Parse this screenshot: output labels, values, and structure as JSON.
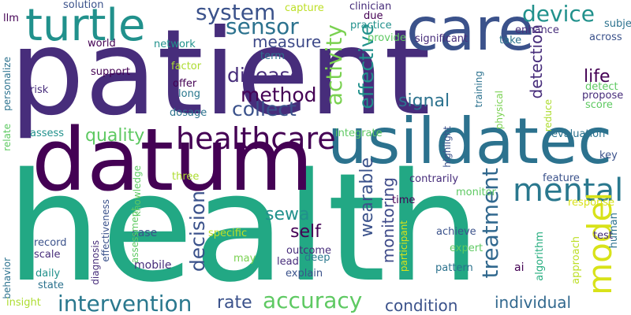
{
  "palette": {
    "dark_purple": "#440154",
    "indigo": "#472d7b",
    "blue": "#3b528b",
    "slate_blue": "#2c728e",
    "teal": "#21918c",
    "green_teal": "#28ae80",
    "green": "#5ec962",
    "lime": "#addc30",
    "yellow": "#d8e219"
  },
  "words": [
    {
      "text": "patient",
      "color": "#472d7b"
    },
    {
      "text": "health",
      "color": "#22a884"
    },
    {
      "text": "datum",
      "color": "#440154"
    },
    {
      "text": "usildatec",
      "color": "#2c728e"
    },
    {
      "text": "care",
      "color": "#3b528b"
    },
    {
      "text": "turtle",
      "color": "#21918c"
    },
    {
      "text": "healthcare",
      "color": "#440154"
    },
    {
      "text": "mental",
      "color": "#2a788e"
    },
    {
      "text": "model",
      "color": "#d8e219"
    },
    {
      "text": "system",
      "color": "#3b528b"
    },
    {
      "text": "sensor",
      "color": "#2c728e"
    },
    {
      "text": "device",
      "color": "#21918c"
    },
    {
      "text": "activity",
      "color": "#7ad151"
    },
    {
      "text": "disease",
      "color": "#472d7b"
    },
    {
      "text": "method",
      "color": "#440154"
    },
    {
      "text": "collect",
      "color": "#3b528b"
    },
    {
      "text": "measure",
      "color": "#3e4a89"
    },
    {
      "text": "effective",
      "color": "#21918c"
    },
    {
      "text": "signal",
      "color": "#2c728e"
    },
    {
      "text": "life",
      "color": "#440154"
    },
    {
      "text": "quality",
      "color": "#5ec962"
    },
    {
      "text": "accuracy",
      "color": "#5ec962"
    },
    {
      "text": "intervention",
      "color": "#2a788e"
    },
    {
      "text": "treatment",
      "color": "#31688e"
    },
    {
      "text": "decision",
      "color": "#3b528b"
    },
    {
      "text": "wearable",
      "color": "#3b528b"
    },
    {
      "text": "monitoring",
      "color": "#3e4a89"
    },
    {
      "text": "detection",
      "color": "#472d7b"
    },
    {
      "text": "sewa",
      "color": "#21918c"
    },
    {
      "text": "self",
      "color": "#440154"
    },
    {
      "text": "rate",
      "color": "#3b528b"
    },
    {
      "text": "condition",
      "color": "#3b528b"
    },
    {
      "text": "individual",
      "color": "#31688e"
    },
    {
      "text": "case",
      "color": "#3b528b"
    },
    {
      "text": "mobile",
      "color": "#472d7b"
    },
    {
      "text": "outcome",
      "color": "#472d7b"
    },
    {
      "text": "lead",
      "color": "#472d7b"
    },
    {
      "text": "deep",
      "color": "#2a788e"
    },
    {
      "text": "explain",
      "color": "#3b528b"
    },
    {
      "text": "may",
      "color": "#7ad151"
    },
    {
      "text": "specific",
      "color": "#bddf26"
    },
    {
      "text": "pattern",
      "color": "#2c728e"
    },
    {
      "text": "achieve",
      "color": "#3b528b"
    },
    {
      "text": "expert",
      "color": "#5ec962"
    },
    {
      "text": "ai",
      "color": "#440154"
    },
    {
      "text": "algorithm",
      "color": "#28ae80"
    },
    {
      "text": "approach",
      "color": "#bddf26"
    },
    {
      "text": "test",
      "color": "#472d7b"
    },
    {
      "text": "human",
      "color": "#2c728e"
    },
    {
      "text": "response",
      "color": "#d8e219"
    },
    {
      "text": "feature",
      "color": "#3b528b"
    },
    {
      "text": "key",
      "color": "#3b528b"
    },
    {
      "text": "evaluation",
      "color": "#2c728e"
    },
    {
      "text": "score",
      "color": "#5ec962"
    },
    {
      "text": "detect",
      "color": "#5ec962"
    },
    {
      "text": "propose",
      "color": "#472d7b"
    },
    {
      "text": "reduce",
      "color": "#addc30"
    },
    {
      "text": "across",
      "color": "#3b528b"
    },
    {
      "text": "subject",
      "color": "#2c728e"
    },
    {
      "text": "enhance",
      "color": "#472d7b"
    },
    {
      "text": "take",
      "color": "#2c728e"
    },
    {
      "text": "significant",
      "color": "#472d7b"
    },
    {
      "text": "provide",
      "color": "#5ec962"
    },
    {
      "text": "practice",
      "color": "#21918c"
    },
    {
      "text": "due",
      "color": "#440154"
    },
    {
      "text": "clinician",
      "color": "#472d7b"
    },
    {
      "text": "capture",
      "color": "#bddf26"
    },
    {
      "text": "solution",
      "color": "#3b528b"
    },
    {
      "text": "llm",
      "color": "#440154"
    },
    {
      "text": "world",
      "color": "#440154"
    },
    {
      "text": "network",
      "color": "#21918c"
    },
    {
      "text": "term",
      "color": "#2c728e"
    },
    {
      "text": "factor",
      "color": "#addc30"
    },
    {
      "text": "support",
      "color": "#440154"
    },
    {
      "text": "offer",
      "color": "#440154"
    },
    {
      "text": "long",
      "color": "#2a788e"
    },
    {
      "text": "dosage",
      "color": "#2c728e"
    },
    {
      "text": "personalize",
      "color": "#2c728e"
    },
    {
      "text": "risk",
      "color": "#472d7b"
    },
    {
      "text": "relate",
      "color": "#5ec962"
    },
    {
      "text": "assess",
      "color": "#21918c"
    },
    {
      "text": "integrate",
      "color": "#5ec962"
    },
    {
      "text": "highlight",
      "color": "#3b528b"
    },
    {
      "text": "training",
      "color": "#2c728e"
    },
    {
      "text": "physical",
      "color": "#7ad151"
    },
    {
      "text": "contrarily",
      "color": "#472d7b"
    },
    {
      "text": "monitor",
      "color": "#5ec962"
    },
    {
      "text": "time",
      "color": "#440154"
    },
    {
      "text": "knowledge",
      "color": "#5ec962"
    },
    {
      "text": "three",
      "color": "#addc30"
    },
    {
      "text": "assessment",
      "color": "#5ec962"
    },
    {
      "text": "effectiveness",
      "color": "#3b528b"
    },
    {
      "text": "diagnosis",
      "color": "#472d7b"
    },
    {
      "text": "record",
      "color": "#3b528b"
    },
    {
      "text": "scale",
      "color": "#472d7b"
    },
    {
      "text": "behavior",
      "color": "#2c728e"
    },
    {
      "text": "daily",
      "color": "#21918c"
    },
    {
      "text": "state",
      "color": "#2c728e"
    },
    {
      "text": "insight",
      "color": "#addc30"
    },
    {
      "text": "participant",
      "color": "#d8e219"
    }
  ]
}
